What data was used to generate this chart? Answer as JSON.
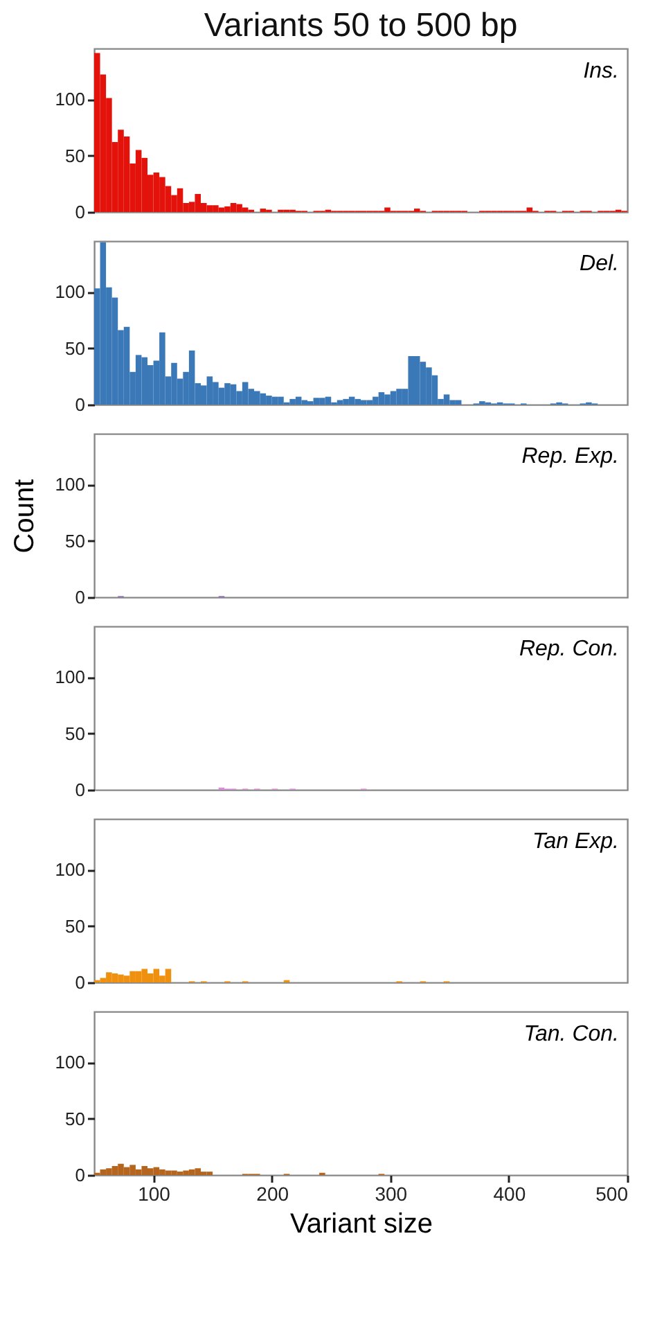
{
  "chart_data": [
    {
      "type": "histogram",
      "title": "Variants 50 to 500 bp",
      "tick_labels": "y",
      "xlim": [
        50,
        500
      ],
      "xticks": [
        100,
        200,
        300,
        400,
        500
      ],
      "ylim": [
        0,
        145
      ],
      "yticks": [
        0,
        50,
        100
      ],
      "bins": [
        50,
        55,
        60,
        65,
        70,
        75,
        80,
        85,
        90,
        95,
        100,
        105,
        110,
        115,
        120,
        125,
        130,
        135,
        140,
        145,
        150,
        155,
        160,
        165,
        170,
        175,
        180,
        185,
        190,
        195,
        200,
        205,
        210,
        215,
        220,
        225,
        230,
        235,
        240,
        245,
        250,
        255,
        260,
        265,
        270,
        275,
        280,
        285,
        290,
        295,
        300,
        305,
        310,
        315,
        320,
        325,
        330,
        335,
        340,
        345,
        350,
        355,
        360,
        365,
        370,
        375,
        380,
        385,
        390,
        395,
        400,
        405,
        410,
        415,
        420,
        425,
        430,
        435,
        440,
        445,
        450,
        455,
        460,
        465,
        470,
        475,
        480,
        485,
        490,
        495,
        500
      ],
      "series": [
        {
          "name": "Ins.",
          "color": "#e3120b",
          "values": [
            141,
            122,
            101,
            62,
            73,
            67,
            43,
            55,
            48,
            33,
            35,
            31,
            23,
            15,
            21,
            8,
            9,
            16,
            8,
            6,
            6,
            4,
            5,
            8,
            7,
            4,
            2,
            0,
            3,
            2,
            0,
            2,
            2,
            2,
            1,
            1,
            0,
            1,
            1,
            2,
            1,
            1,
            1,
            1,
            1,
            1,
            1,
            1,
            1,
            4,
            1,
            1,
            1,
            1,
            3,
            1,
            0,
            1,
            1,
            1,
            1,
            1,
            1,
            0,
            0,
            1,
            1,
            1,
            1,
            1,
            1,
            1,
            1,
            4,
            1,
            0,
            1,
            1,
            0,
            1,
            1,
            0,
            1,
            1,
            0,
            1,
            1,
            1,
            2,
            1
          ]
        }
      ]
    },
    {
      "type": "histogram",
      "tick_labels": "y",
      "xlim": [
        50,
        500
      ],
      "xticks": [
        100,
        200,
        300,
        400,
        500
      ],
      "ylim": [
        0,
        145
      ],
      "yticks": [
        0,
        50,
        100
      ],
      "bins": [
        50,
        55,
        60,
        65,
        70,
        75,
        80,
        85,
        90,
        95,
        100,
        105,
        110,
        115,
        120,
        125,
        130,
        135,
        140,
        145,
        150,
        155,
        160,
        165,
        170,
        175,
        180,
        185,
        190,
        195,
        200,
        205,
        210,
        215,
        220,
        225,
        230,
        235,
        240,
        245,
        250,
        255,
        260,
        265,
        270,
        275,
        280,
        285,
        290,
        295,
        300,
        305,
        310,
        315,
        320,
        325,
        330,
        335,
        340,
        345,
        350,
        355,
        360,
        365,
        370,
        375,
        380,
        385,
        390,
        395,
        400,
        405,
        410,
        415,
        420,
        425,
        430,
        435,
        440,
        445,
        450,
        455,
        460,
        465,
        470,
        475,
        480,
        485,
        490,
        495,
        500
      ],
      "series": [
        {
          "name": "Del.",
          "color": "#3a78b8",
          "values": [
            103,
            144,
            104,
            95,
            66,
            69,
            29,
            44,
            42,
            35,
            39,
            64,
            25,
            37,
            23,
            29,
            48,
            19,
            17,
            25,
            20,
            15,
            19,
            18,
            12,
            20,
            14,
            12,
            10,
            8,
            7,
            7,
            2,
            5,
            7,
            4,
            3,
            6,
            6,
            7,
            2,
            4,
            5,
            7,
            5,
            4,
            4,
            7,
            11,
            9,
            12,
            14,
            14,
            43,
            43,
            38,
            33,
            26,
            5,
            9,
            4,
            4,
            0,
            0,
            1,
            3,
            2,
            1,
            2,
            1,
            1,
            0,
            1,
            0,
            0,
            0,
            0,
            1,
            2,
            1,
            0,
            0,
            1,
            2,
            1,
            0,
            0,
            0,
            0,
            0
          ]
        }
      ]
    },
    {
      "type": "histogram",
      "ylabel": "Count",
      "tick_labels": "y",
      "xlim": [
        50,
        500
      ],
      "xticks": [
        100,
        200,
        300,
        400,
        500
      ],
      "ylim": [
        0,
        145
      ],
      "yticks": [
        0,
        50,
        100
      ],
      "bins": [
        50,
        55,
        60,
        65,
        70,
        75,
        80,
        85,
        90,
        95,
        100,
        105,
        110,
        115,
        120,
        125,
        130,
        135,
        140,
        145,
        150,
        155,
        160,
        165,
        170,
        175,
        180,
        185,
        190,
        195,
        200,
        205,
        210,
        215,
        220,
        225,
        230,
        235,
        240,
        245,
        250,
        255,
        260,
        265,
        270,
        275,
        280,
        285,
        290,
        295,
        300,
        305,
        310,
        315,
        320,
        325,
        330,
        335,
        340,
        345,
        350,
        355,
        360,
        365,
        370,
        375,
        380,
        385,
        390,
        395,
        400,
        405,
        410,
        415,
        420,
        425,
        430,
        435,
        440,
        445,
        450,
        455,
        460,
        465,
        470,
        475,
        480,
        485,
        490,
        495,
        500
      ],
      "series": [
        {
          "name": "Rep. Exp.",
          "color": "#8e6bb8",
          "values": [
            0,
            0,
            0,
            0,
            1,
            0,
            0,
            0,
            0,
            0,
            0,
            0,
            0,
            0,
            0,
            0,
            0,
            0,
            0,
            0,
            0,
            1,
            0,
            0,
            0,
            0,
            0,
            0,
            0,
            0,
            0,
            0,
            0,
            0,
            0,
            0,
            0,
            0,
            0,
            0,
            0,
            0,
            0,
            0,
            0,
            0,
            0,
            0,
            0,
            0,
            0,
            0,
            0,
            0,
            0,
            0,
            0,
            0,
            0,
            0,
            0,
            0,
            0,
            0,
            0,
            0,
            0,
            0,
            0,
            0,
            0,
            0,
            0,
            0,
            0,
            0,
            0,
            0,
            0,
            0,
            0,
            0,
            0,
            0,
            0,
            0,
            0,
            0,
            0,
            0
          ]
        }
      ]
    },
    {
      "type": "histogram",
      "tick_labels": "y",
      "xlim": [
        50,
        500
      ],
      "xticks": [
        100,
        200,
        300,
        400,
        500
      ],
      "ylim": [
        0,
        145
      ],
      "yticks": [
        0,
        50,
        100
      ],
      "bins": [
        50,
        55,
        60,
        65,
        70,
        75,
        80,
        85,
        90,
        95,
        100,
        105,
        110,
        115,
        120,
        125,
        130,
        135,
        140,
        145,
        150,
        155,
        160,
        165,
        170,
        175,
        180,
        185,
        190,
        195,
        200,
        205,
        210,
        215,
        220,
        225,
        230,
        235,
        240,
        245,
        250,
        255,
        260,
        265,
        270,
        275,
        280,
        285,
        290,
        295,
        300,
        305,
        310,
        315,
        320,
        325,
        330,
        335,
        340,
        345,
        350,
        355,
        360,
        365,
        370,
        375,
        380,
        385,
        390,
        395,
        400,
        405,
        410,
        415,
        420,
        425,
        430,
        435,
        440,
        445,
        450,
        455,
        460,
        465,
        470,
        475,
        480,
        485,
        490,
        495,
        500
      ],
      "series": [
        {
          "name": "Rep. Con.",
          "color": "#d98fd9",
          "values": [
            0,
            0,
            0,
            0,
            0,
            0,
            0,
            0,
            0,
            0,
            0,
            0,
            0,
            0,
            0,
            0,
            0,
            0,
            0,
            0,
            0,
            2,
            1,
            1,
            0,
            1,
            0,
            1,
            0,
            0,
            1,
            0,
            0,
            1,
            0,
            0,
            0,
            0,
            0,
            0,
            0,
            0,
            0,
            0,
            0,
            1,
            0,
            0,
            0,
            0,
            0,
            0,
            0,
            0,
            0,
            0,
            0,
            0,
            0,
            0,
            0,
            0,
            0,
            0,
            0,
            0,
            0,
            0,
            0,
            0,
            0,
            0,
            0,
            0,
            0,
            0,
            0,
            0,
            0,
            0,
            0,
            0,
            0,
            0,
            0,
            0,
            0,
            0,
            0,
            0
          ]
        }
      ]
    },
    {
      "type": "histogram",
      "tick_labels": "y",
      "xlim": [
        50,
        500
      ],
      "xticks": [
        100,
        200,
        300,
        400,
        500
      ],
      "ylim": [
        0,
        145
      ],
      "yticks": [
        0,
        50,
        100
      ],
      "bins": [
        50,
        55,
        60,
        65,
        70,
        75,
        80,
        85,
        90,
        95,
        100,
        105,
        110,
        115,
        120,
        125,
        130,
        135,
        140,
        145,
        150,
        155,
        160,
        165,
        170,
        175,
        180,
        185,
        190,
        195,
        200,
        205,
        210,
        215,
        220,
        225,
        230,
        235,
        240,
        245,
        250,
        255,
        260,
        265,
        270,
        275,
        280,
        285,
        290,
        295,
        300,
        305,
        310,
        315,
        320,
        325,
        330,
        335,
        340,
        345,
        350,
        355,
        360,
        365,
        370,
        375,
        380,
        385,
        390,
        395,
        400,
        405,
        410,
        415,
        420,
        425,
        430,
        435,
        440,
        445,
        450,
        455,
        460,
        465,
        470,
        475,
        480,
        485,
        490,
        495,
        500
      ],
      "series": [
        {
          "name": "Tan Exp.",
          "color": "#f0900f",
          "values": [
            2,
            4,
            9,
            8,
            7,
            6,
            10,
            10,
            12,
            8,
            12,
            6,
            12,
            0,
            0,
            0,
            1,
            0,
            1,
            0,
            0,
            0,
            1,
            0,
            0,
            1,
            0,
            0,
            0,
            0,
            0,
            0,
            2,
            0,
            0,
            0,
            0,
            0,
            0,
            0,
            0,
            0,
            0,
            0,
            0,
            0,
            0,
            0,
            0,
            0,
            0,
            1,
            0,
            0,
            0,
            1,
            0,
            0,
            0,
            1,
            0,
            0,
            0,
            0,
            0,
            0,
            0,
            0,
            0,
            0,
            0,
            0,
            0,
            0,
            0,
            0,
            0,
            0,
            0,
            0,
            0,
            0,
            0,
            0,
            0,
            0,
            0,
            0,
            0,
            0
          ]
        }
      ]
    },
    {
      "type": "histogram",
      "xlabel": "Variant size",
      "xlim": [
        50,
        500
      ],
      "xticks": [
        100,
        200,
        300,
        400,
        500
      ],
      "ylim": [
        0,
        145
      ],
      "yticks": [
        0,
        50,
        100
      ],
      "bins": [
        50,
        55,
        60,
        65,
        70,
        75,
        80,
        85,
        90,
        95,
        100,
        105,
        110,
        115,
        120,
        125,
        130,
        135,
        140,
        145,
        150,
        155,
        160,
        165,
        170,
        175,
        180,
        185,
        190,
        195,
        200,
        205,
        210,
        215,
        220,
        225,
        230,
        235,
        240,
        245,
        250,
        255,
        260,
        265,
        270,
        275,
        280,
        285,
        290,
        295,
        300,
        305,
        310,
        315,
        320,
        325,
        330,
        335,
        340,
        345,
        350,
        355,
        360,
        365,
        370,
        375,
        380,
        385,
        390,
        395,
        400,
        405,
        410,
        415,
        420,
        425,
        430,
        435,
        440,
        445,
        450,
        455,
        460,
        465,
        470,
        475,
        480,
        485,
        490,
        495,
        500
      ],
      "series": [
        {
          "name": "Tan. Con.",
          "color": "#b5651d",
          "values": [
            2,
            5,
            6,
            8,
            10,
            7,
            9,
            5,
            8,
            6,
            7,
            5,
            4,
            4,
            3,
            4,
            5,
            6,
            3,
            3,
            0,
            0,
            0,
            0,
            0,
            1,
            1,
            1,
            0,
            0,
            0,
            0,
            1,
            0,
            0,
            0,
            0,
            0,
            2,
            0,
            0,
            0,
            0,
            0,
            0,
            0,
            0,
            0,
            1,
            0,
            0,
            0,
            0,
            0,
            0,
            0,
            0,
            0,
            0,
            0,
            0,
            0,
            0,
            0,
            0,
            0,
            0,
            0,
            0,
            0,
            0,
            0,
            0,
            0,
            0,
            0,
            0,
            0,
            0,
            0,
            0,
            0,
            0,
            0,
            0,
            0,
            0,
            0,
            0,
            0
          ]
        }
      ]
    }
  ]
}
